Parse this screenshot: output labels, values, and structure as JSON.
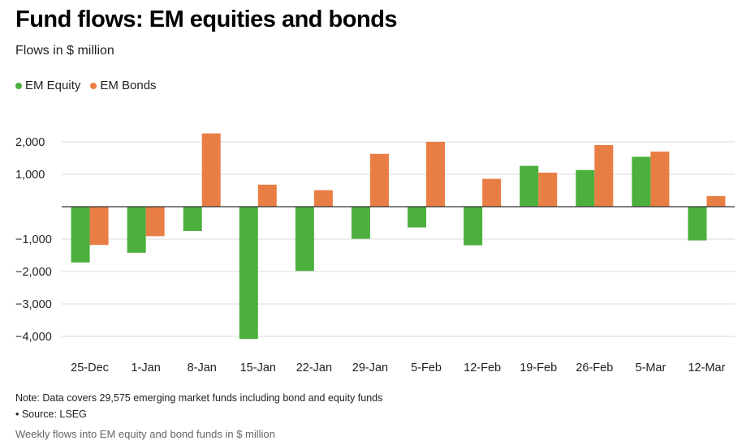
{
  "header": {
    "title": "Fund flows: EM equities and bonds",
    "subtitle": "Flows in $ million"
  },
  "footer": {
    "note": "Note: Data covers 29,575 emerging market funds including bond and equity funds",
    "source": "• Source: LSEG",
    "caption": "Weekly flows into EM equity and bond funds in $ million"
  },
  "colors": {
    "equity": "#4caf3e",
    "bonds": "#e97e45",
    "grid": "#d9d9d9",
    "zero_line": "#333333"
  },
  "chart_data": {
    "type": "bar",
    "title": "Fund flows: EM equities and bonds",
    "subtitle": "Flows in $ million",
    "xlabel": "",
    "ylabel": "",
    "categories": [
      "25-Dec",
      "1-Jan",
      "8-Jan",
      "15-Jan",
      "22-Jan",
      "29-Jan",
      "5-Feb",
      "12-Feb",
      "19-Feb",
      "26-Feb",
      "5-Mar",
      "12-Mar"
    ],
    "series": [
      {
        "name": "EM Equity",
        "values": [
          -1720,
          -1420,
          -750,
          -4080,
          -1980,
          -990,
          -640,
          -1190,
          1260,
          1130,
          1540,
          -1040
        ]
      },
      {
        "name": "EM Bonds",
        "values": [
          -1180,
          -910,
          2260,
          680,
          510,
          1630,
          2000,
          860,
          1050,
          1900,
          1700,
          330
        ]
      }
    ],
    "yticks": [
      2000,
      1000,
      -1000,
      -2000,
      -3000,
      -4000
    ],
    "ytick_labels": [
      "2,000",
      "1,000",
      "−1,000",
      "−2,000",
      "−3,000",
      "−4,000"
    ],
    "ylim": [
      -4000,
      2000
    ],
    "grid": true,
    "legend_position": "top-left"
  }
}
